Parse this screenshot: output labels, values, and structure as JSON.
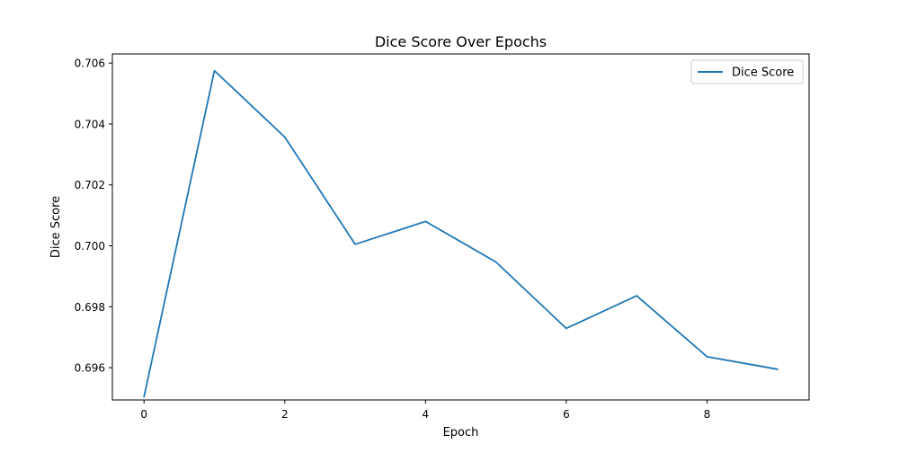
{
  "chart_data": {
    "type": "line",
    "title": "Dice Score Over Epochs",
    "xlabel": "Epoch",
    "ylabel": "Dice Score",
    "xlim": [
      -0.45,
      9.45
    ],
    "ylim": [
      0.69494,
      0.7063
    ],
    "x_ticks": [
      0,
      2,
      4,
      6,
      8
    ],
    "y_ticks": [
      0.696,
      0.698,
      0.7,
      0.702,
      0.704,
      0.706
    ],
    "y_tick_labels": [
      "0.696",
      "0.698",
      "0.700",
      "0.702",
      "0.704",
      "0.706"
    ],
    "grid": false,
    "legend_position": "top-right",
    "series": [
      {
        "name": "Dice Score",
        "color": "#1f77b4",
        "x": [
          0,
          1,
          2,
          3,
          4,
          5,
          6,
          7,
          8,
          9
        ],
        "values": [
          0.69505,
          0.70575,
          0.70357,
          0.70005,
          0.7008,
          0.69947,
          0.69729,
          0.69836,
          0.69636,
          0.69595
        ]
      }
    ]
  }
}
